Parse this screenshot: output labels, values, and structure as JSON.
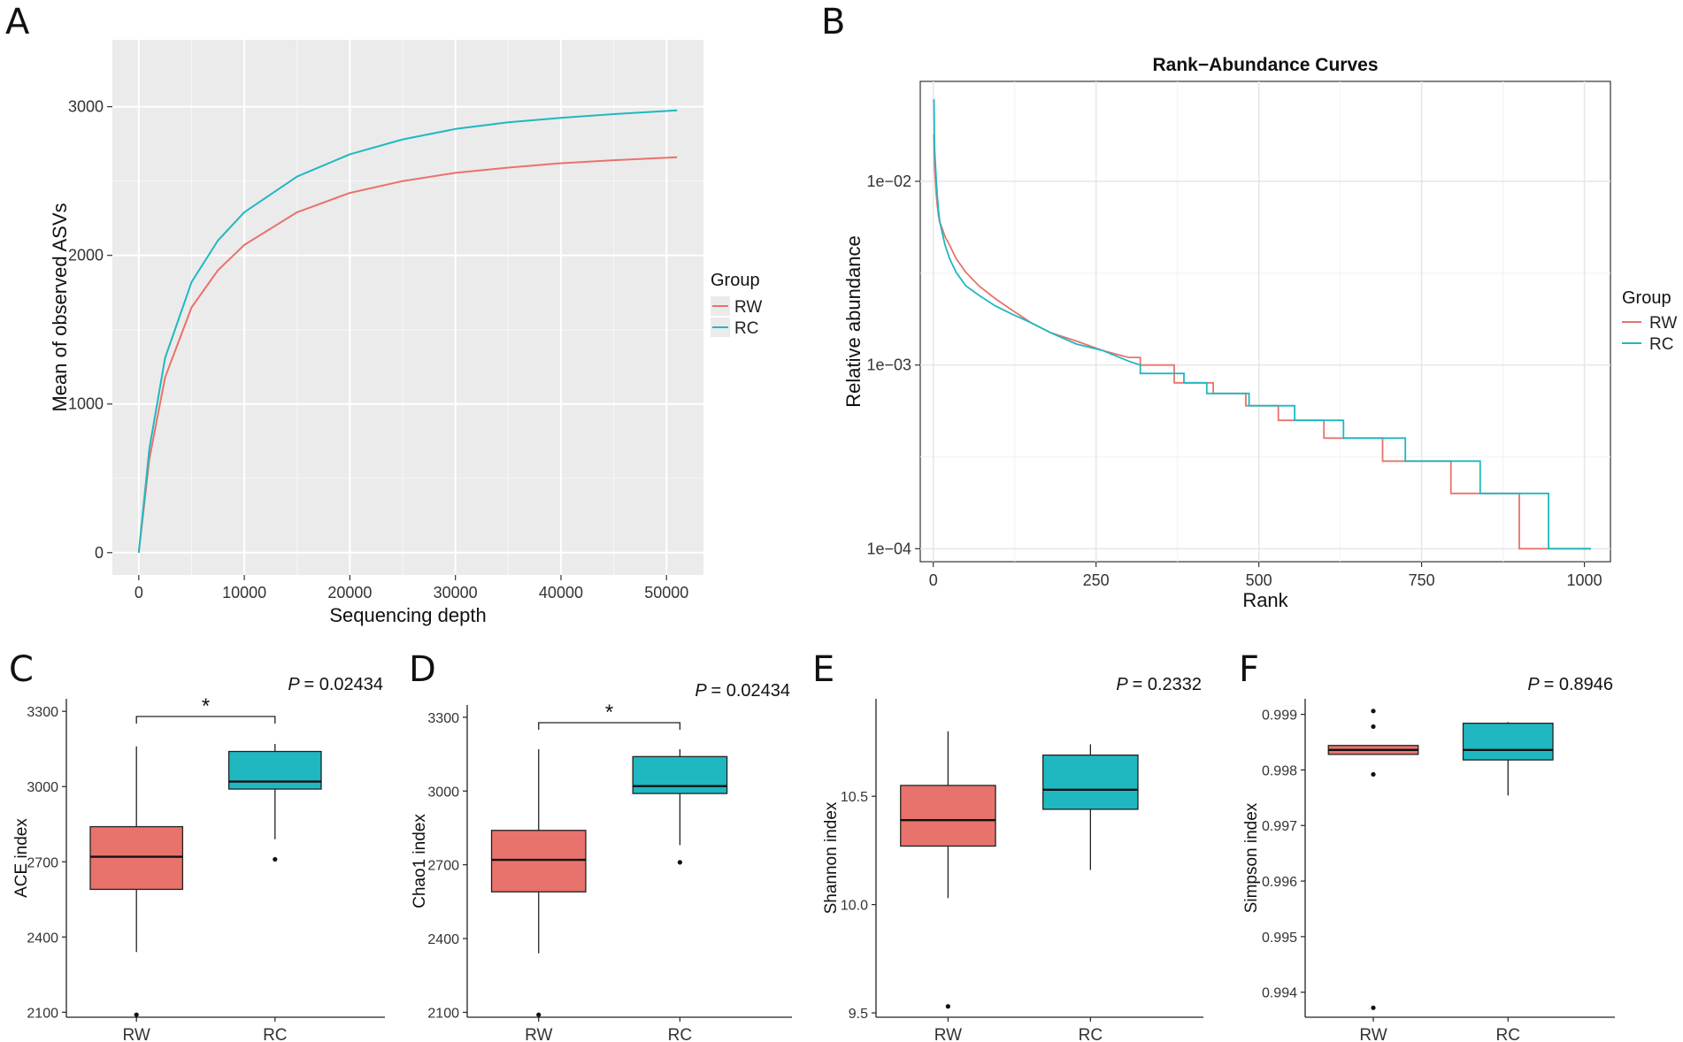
{
  "panels": {
    "A": {
      "letter": "A"
    },
    "B": {
      "letter": "B"
    },
    "C": {
      "letter": "C"
    },
    "D": {
      "letter": "D"
    },
    "E": {
      "letter": "E"
    },
    "F": {
      "letter": "F"
    }
  },
  "colors": {
    "RW": "#E8736C",
    "RC": "#1FB8C1",
    "panel_bg": "#EBEBEB",
    "grid": "#FFFFFF",
    "grid_light": "#E6E6E6"
  },
  "chart_data": [
    {
      "id": "A",
      "type": "line",
      "title": "",
      "xlabel": "Sequencing depth",
      "ylabel": "Mean of observed ASVs",
      "xlim": [
        -2500,
        53500
      ],
      "ylim": [
        -150,
        3450
      ],
      "xticks": [
        0,
        10000,
        20000,
        30000,
        40000,
        50000
      ],
      "xtick_labels": [
        "0",
        "10000",
        "20000",
        "30000",
        "40000",
        "50000"
      ],
      "yticks": [
        0,
        1000,
        2000,
        3000
      ],
      "ytick_labels": [
        "0",
        "1000",
        "2000",
        "3000"
      ],
      "legend": {
        "title": "Group",
        "entries": [
          "RW",
          "RC"
        ],
        "position": "right"
      },
      "series": [
        {
          "name": "RW",
          "x": [
            0,
            1000,
            2500,
            5000,
            7500,
            10000,
            15000,
            20000,
            25000,
            30000,
            35000,
            40000,
            45000,
            51000
          ],
          "values": [
            0,
            630,
            1180,
            1650,
            1900,
            2070,
            2290,
            2420,
            2500,
            2555,
            2590,
            2620,
            2640,
            2660
          ]
        },
        {
          "name": "RC",
          "x": [
            0,
            1000,
            2500,
            5000,
            7500,
            10000,
            15000,
            20000,
            25000,
            30000,
            35000,
            40000,
            45000,
            51000
          ],
          "values": [
            0,
            700,
            1310,
            1820,
            2100,
            2290,
            2530,
            2680,
            2780,
            2850,
            2895,
            2925,
            2950,
            2975
          ]
        }
      ]
    },
    {
      "id": "B",
      "type": "line",
      "title": "Rank−Abundance Curves",
      "xlabel": "Rank",
      "ylabel": "Relative abundance",
      "yscale": "log",
      "xlim": [
        -20,
        1040
      ],
      "ylim": [
        8.5e-05,
        0.035
      ],
      "xticks": [
        0,
        250,
        500,
        750,
        1000
      ],
      "xtick_labels": [
        "0",
        "250",
        "500",
        "750",
        "1000"
      ],
      "yticks": [
        0.0001,
        0.001,
        0.01
      ],
      "ytick_labels": [
        "1e−04",
        "1e−03",
        "1e−02"
      ],
      "legend": {
        "title": "Group",
        "entries": [
          "RW",
          "RC"
        ],
        "position": "right"
      },
      "series": [
        {
          "name": "RW",
          "x": [
            1,
            2,
            4,
            6,
            8,
            10,
            14,
            18,
            25,
            35,
            50,
            70,
            95,
            120,
            150,
            180,
            220,
            260,
            300,
            318,
            318,
            370,
            370,
            430,
            430,
            480,
            480,
            530,
            530,
            600,
            600,
            690,
            690,
            795,
            795,
            900,
            900,
            1010
          ],
          "values": [
            0.018,
            0.012,
            0.009,
            0.0075,
            0.0065,
            0.006,
            0.0055,
            0.005,
            0.0045,
            0.0038,
            0.0032,
            0.0027,
            0.0023,
            0.002,
            0.0017,
            0.0015,
            0.00135,
            0.0012,
            0.0011,
            0.0011,
            0.001,
            0.001,
            0.0008,
            0.0008,
            0.0007,
            0.0007,
            0.0006,
            0.0006,
            0.0005,
            0.0005,
            0.0004,
            0.0004,
            0.0003,
            0.0003,
            0.0002,
            0.0002,
            0.0001,
            0.0001
          ]
        },
        {
          "name": "RC",
          "x": [
            1,
            2,
            4,
            6,
            8,
            10,
            14,
            18,
            25,
            35,
            50,
            70,
            95,
            120,
            150,
            180,
            220,
            260,
            300,
            318,
            318,
            385,
            385,
            420,
            420,
            485,
            485,
            555,
            555,
            630,
            630,
            725,
            725,
            840,
            840,
            945,
            945,
            1010
          ],
          "values": [
            0.028,
            0.015,
            0.011,
            0.0085,
            0.007,
            0.006,
            0.0052,
            0.0045,
            0.0038,
            0.0032,
            0.0027,
            0.0024,
            0.0021,
            0.0019,
            0.0017,
            0.0015,
            0.0013,
            0.0012,
            0.00105,
            0.001,
            0.0009,
            0.0009,
            0.0008,
            0.0008,
            0.0007,
            0.0007,
            0.0006,
            0.0006,
            0.0005,
            0.0005,
            0.0004,
            0.0004,
            0.0003,
            0.0003,
            0.0002,
            0.0002,
            0.0001,
            0.0001
          ]
        }
      ]
    },
    {
      "id": "C",
      "type": "box",
      "ylabel": "ACE index",
      "categories": [
        "RW",
        "RC"
      ],
      "ylim": [
        2080,
        3350
      ],
      "yticks": [
        2100,
        2400,
        2700,
        3000,
        3300
      ],
      "ytick_labels": [
        "2100",
        "2400",
        "2700",
        "3000",
        "3300"
      ],
      "annotation": {
        "p_label": "P",
        "p_value": "= 0.02434",
        "significance": "*"
      },
      "boxes": [
        {
          "name": "RW",
          "whisker_low": 2340,
          "q1": 2590,
          "median": 2720,
          "q3": 2840,
          "whisker_high": 3160,
          "outliers": [
            2090
          ]
        },
        {
          "name": "RC",
          "whisker_low": 2790,
          "q1": 2990,
          "median": 3020,
          "q3": 3140,
          "whisker_high": 3170,
          "outliers": [
            2710
          ]
        }
      ]
    },
    {
      "id": "D",
      "type": "box",
      "ylabel": "Chao1 index",
      "categories": [
        "RW",
        "RC"
      ],
      "ylim": [
        2080,
        3350
      ],
      "yticks": [
        2100,
        2400,
        2700,
        3000,
        3300
      ],
      "ytick_labels": [
        "2100",
        "2400",
        "2700",
        "3000",
        "3300"
      ],
      "annotation": {
        "p_label": "P",
        "p_value": "= 0.02434",
        "significance": "*"
      },
      "boxes": [
        {
          "name": "RW",
          "whisker_low": 2340,
          "q1": 2590,
          "median": 2720,
          "q3": 2840,
          "whisker_high": 3170,
          "outliers": [
            2090
          ]
        },
        {
          "name": "RC",
          "whisker_low": 2780,
          "q1": 2990,
          "median": 3020,
          "q3": 3140,
          "whisker_high": 3170,
          "outliers": [
            2710
          ]
        }
      ]
    },
    {
      "id": "E",
      "type": "box",
      "ylabel": "Shannon index",
      "categories": [
        "RW",
        "RC"
      ],
      "ylim": [
        9.48,
        10.95
      ],
      "yticks": [
        9.5,
        10.0,
        10.5
      ],
      "ytick_labels": [
        "9.5",
        "10.0",
        "10.5"
      ],
      "annotation": {
        "p_label": "P",
        "p_value": "= 0.2332",
        "significance": ""
      },
      "boxes": [
        {
          "name": "RW",
          "whisker_low": 10.03,
          "q1": 10.27,
          "median": 10.39,
          "q3": 10.55,
          "whisker_high": 10.8,
          "outliers": [
            9.53
          ]
        },
        {
          "name": "RC",
          "whisker_low": 10.16,
          "q1": 10.44,
          "median": 10.53,
          "q3": 10.69,
          "whisker_high": 10.74,
          "outliers": []
        }
      ]
    },
    {
      "id": "F",
      "type": "box",
      "ylabel": "Simpson index",
      "categories": [
        "RW",
        "RC"
      ],
      "ylim": [
        0.99355,
        0.99928
      ],
      "yticks": [
        0.994,
        0.995,
        0.996,
        0.997,
        0.998,
        0.999
      ],
      "ytick_labels": [
        "0.994",
        "0.995",
        "0.996",
        "0.997",
        "0.998",
        "0.999"
      ],
      "annotation": {
        "p_label": "P",
        "p_value": "= 0.8946",
        "significance": ""
      },
      "boxes": [
        {
          "name": "RW",
          "whisker_low": 0.99828,
          "q1": 0.99828,
          "median": 0.99836,
          "q3": 0.99844,
          "whisker_high": 0.99844,
          "outliers": [
            0.99906,
            0.99878,
            0.99792,
            0.99372
          ]
        },
        {
          "name": "RC",
          "whisker_low": 0.99754,
          "q1": 0.99818,
          "median": 0.99836,
          "q3": 0.99884,
          "whisker_high": 0.99886,
          "outliers": []
        }
      ]
    }
  ]
}
